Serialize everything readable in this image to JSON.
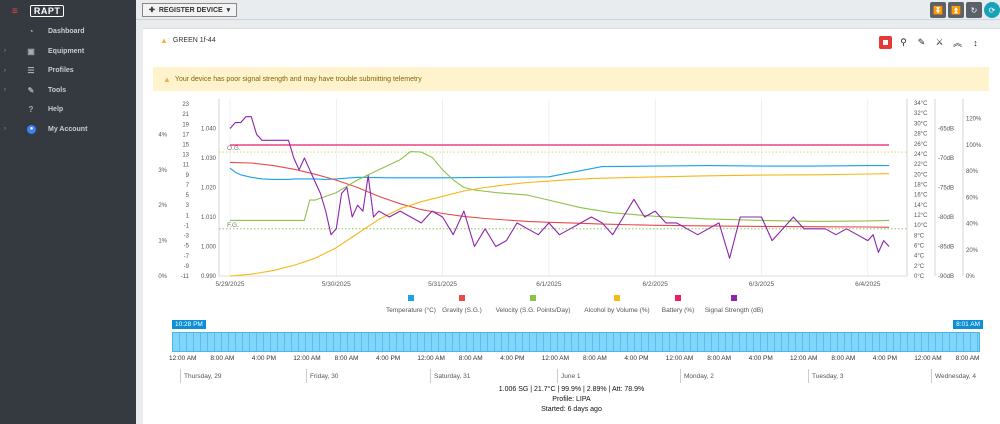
{
  "sidebar": {
    "logo": "RAPT",
    "items": [
      {
        "label": "Dashboard",
        "icon": "dashboard-icon",
        "glyph": "◔",
        "caret": false
      },
      {
        "label": "Equipment",
        "icon": "toolbox-icon",
        "glyph": "▣",
        "caret": true
      },
      {
        "label": "Profiles",
        "icon": "list-icon",
        "glyph": "☰",
        "caret": true
      },
      {
        "label": "Tools",
        "icon": "wrench-icon",
        "glyph": "✎",
        "caret": true
      },
      {
        "label": "Help",
        "icon": "help-icon",
        "glyph": "?",
        "caret": false
      },
      {
        "label": "My Account",
        "icon": "account-icon",
        "glyph": "●",
        "caret": true
      }
    ]
  },
  "topbar": {
    "register_label": "REGISTER DEVICE"
  },
  "device": {
    "name": "GREEN 1f-44"
  },
  "alert": {
    "text": "Your device has poor signal strength and may have trouble submitting telemetry"
  },
  "colors": {
    "temperature": "#1aa3e8",
    "gravity": "#e84a4a",
    "velocity": "#8bc34a",
    "abv": "#f6b717",
    "battery": "#e91e63",
    "signal": "#8e24aa"
  },
  "chart_data": {
    "type": "line",
    "x_ticks": [
      "5/29/2025",
      "5/30/2025",
      "5/31/2025",
      "6/1/2025",
      "6/2/2025",
      "6/3/2025",
      "6/4/2025"
    ],
    "axes": {
      "abv_pct": {
        "ticks": [
          "0%",
          "1%",
          "2%",
          "3%",
          "4%"
        ],
        "range": [
          0,
          5
        ]
      },
      "velocity": {
        "ticks": [
          "-11",
          "-9",
          "-7",
          "-5",
          "-3",
          "-1",
          "1",
          "3",
          "5",
          "7",
          "9",
          "11",
          "13",
          "15",
          "17",
          "19",
          "21",
          "23"
        ],
        "range": [
          -11,
          24
        ]
      },
      "gravity": {
        "ticks": [
          "0.990",
          "1.000",
          "1.010",
          "1.020",
          "1.030",
          "1.040"
        ],
        "range": [
          0.99,
          1.05
        ]
      },
      "temperature": {
        "ticks": [
          "0°C",
          "2°C",
          "4°C",
          "6°C",
          "8°C",
          "10°C",
          "12°C",
          "14°C",
          "16°C",
          "18°C",
          "20°C",
          "22°C",
          "24°C",
          "26°C",
          "28°C",
          "30°C",
          "32°C",
          "34°C"
        ],
        "range": [
          0,
          34.8
        ]
      },
      "signal": {
        "ticks": [
          "-90dB",
          "-85dB",
          "-80dB",
          "-75dB",
          "-70dB",
          "-65dB"
        ],
        "range": [
          -90,
          -60
        ]
      },
      "battery": {
        "ticks": [
          "0%",
          "20%",
          "40%",
          "60%",
          "80%",
          "100%",
          "120%"
        ],
        "range": [
          0,
          135
        ]
      }
    },
    "reference_lines": [
      {
        "label": "O.G.",
        "value": 1.032
      },
      {
        "label": "F.G.",
        "value": 1.006
      }
    ],
    "series": [
      {
        "name": "Temperature (°C)",
        "key": "temperature",
        "axis": "temperature",
        "x": [
          0,
          0.05,
          0.1,
          0.2,
          0.3,
          0.4,
          0.5,
          0.55,
          0.6,
          0.7,
          0.8,
          0.9,
          1.0,
          1.2,
          1.5,
          2.0,
          2.5,
          3.0,
          3.5,
          4.0,
          4.5,
          5.0,
          5.5,
          6.0,
          6.2
        ],
        "y": [
          21.2,
          20.4,
          19.9,
          19.4,
          19.1,
          19.0,
          19.0,
          19.0,
          19.1,
          19.1,
          19.1,
          19.0,
          19.1,
          19.4,
          19.3,
          19.3,
          19.4,
          19.5,
          21.5,
          21.6,
          21.7,
          21.6,
          21.6,
          21.7,
          21.7
        ]
      },
      {
        "name": "Gravity (S.G.)",
        "key": "gravity",
        "axis": "gravity",
        "x": [
          0,
          0.2,
          0.4,
          0.6,
          0.8,
          1.0,
          1.2,
          1.4,
          1.6,
          1.8,
          2.0,
          2.2,
          2.4,
          2.6,
          2.8,
          3.0,
          3.2,
          3.5,
          4.0,
          4.5,
          5.0,
          5.5,
          6.0,
          6.2
        ],
        "y": [
          1.0285,
          1.0283,
          1.0275,
          1.0262,
          1.0245,
          1.0225,
          1.02,
          1.017,
          1.0145,
          1.0125,
          1.0112,
          1.0102,
          1.0095,
          1.009,
          1.0085,
          1.0082,
          1.008,
          1.0076,
          1.0072,
          1.007,
          1.0068,
          1.0067,
          1.0066,
          1.0065
        ]
      },
      {
        "name": "Velocity (S.G. Points/Day)",
        "key": "velocity",
        "axis": "velocity",
        "x": [
          0,
          0.4,
          0.7,
          0.75,
          0.8,
          1.0,
          1.2,
          1.4,
          1.6,
          1.7,
          1.8,
          1.9,
          2.0,
          2.1,
          2.2,
          2.3,
          2.5,
          2.8,
          3.0,
          3.3,
          3.6,
          4.0,
          4.5,
          5.0,
          5.5,
          6.0,
          6.2
        ],
        "y": [
          0,
          0,
          0,
          4,
          4,
          5.5,
          8,
          10,
          12,
          13.6,
          13.5,
          12.5,
          10,
          8,
          6.5,
          6.0,
          5.5,
          5.0,
          4.0,
          2.5,
          1.5,
          0.8,
          0.3,
          0,
          -0.2,
          -0.1,
          0
        ]
      },
      {
        "name": "Alcohol by Volume (%)",
        "key": "abv",
        "axis": "abv_pct",
        "x": [
          0,
          0.2,
          0.4,
          0.6,
          0.8,
          1.0,
          1.2,
          1.4,
          1.6,
          1.8,
          2.0,
          2.2,
          2.4,
          2.6,
          2.8,
          3.0,
          3.2,
          3.4,
          3.6,
          4.0,
          4.5,
          5.0,
          5.5,
          6.0,
          6.2
        ],
        "y": [
          0,
          0.05,
          0.15,
          0.3,
          0.5,
          0.8,
          1.2,
          1.6,
          1.9,
          2.1,
          2.25,
          2.4,
          2.5,
          2.58,
          2.64,
          2.68,
          2.72,
          2.75,
          2.77,
          2.8,
          2.83,
          2.85,
          2.86,
          2.88,
          2.89
        ]
      },
      {
        "name": "Battery (%)",
        "key": "battery",
        "axis": "battery",
        "x": [
          0,
          6.2
        ],
        "y": [
          99.9,
          99.9
        ]
      },
      {
        "name": "Signal Strength (dB)",
        "key": "signal",
        "axis": "signal",
        "x": [
          0,
          0.05,
          0.1,
          0.15,
          0.2,
          0.25,
          0.3,
          0.5,
          0.55,
          0.6,
          0.65,
          0.7,
          0.75,
          0.8,
          0.85,
          0.9,
          0.95,
          1.0,
          1.05,
          1.1,
          1.15,
          1.2,
          1.25,
          1.3,
          1.35,
          1.4,
          1.5,
          1.6,
          1.7,
          1.8,
          1.9,
          2.0,
          2.1,
          2.2,
          2.3,
          2.4,
          2.5,
          2.6,
          2.7,
          2.8,
          2.9,
          3.0,
          3.1,
          3.2,
          3.3,
          3.4,
          3.5,
          3.6,
          3.7,
          3.8,
          3.9,
          4.0,
          4.1,
          4.2,
          4.3,
          4.4,
          4.5,
          4.6,
          4.7,
          4.8,
          4.9,
          5.0,
          5.1,
          5.2,
          5.3,
          5.4,
          5.5,
          5.6,
          5.7,
          5.8,
          5.9,
          6.0,
          6.05,
          6.1,
          6.15,
          6.2
        ],
        "y": [
          -65,
          -64,
          -64,
          -63,
          -63,
          -66,
          -67,
          -67,
          -67,
          -70,
          -72,
          -70,
          -72,
          -74,
          -76,
          -79,
          -83,
          -82,
          -76,
          -75,
          -80,
          -78,
          -79,
          -73,
          -80,
          -79,
          -80,
          -79,
          -80,
          -81,
          -79,
          -80,
          -83,
          -79,
          -85,
          -82,
          -85,
          -84,
          -81,
          -82,
          -83,
          -81,
          -83,
          -82,
          -81,
          -80,
          -81,
          -83,
          -80,
          -77,
          -80,
          -79,
          -81,
          -81,
          -82,
          -83,
          -82,
          -81,
          -87,
          -80,
          -80,
          -80,
          -84,
          -82,
          -80,
          -82,
          -82,
          -82,
          -83,
          -82,
          -83,
          -84,
          -83,
          -86,
          -84,
          -85
        ]
      }
    ]
  },
  "timeline": {
    "start_badge": "10:28 PM",
    "end_badge": "8:01 AM",
    "hours": [
      "12:00 AM",
      "8:00 AM",
      "4:00 PM",
      "12:00 AM",
      "8:00 AM",
      "4:00 PM",
      "12:00 AM",
      "8:00 AM",
      "4:00 PM",
      "12:00 AM",
      "8:00 AM",
      "4:00 PM",
      "12:00 AM",
      "8:00 AM",
      "4:00 PM",
      "12:00 AM",
      "8:00 AM",
      "4:00 PM",
      "12:00 AM",
      "8:00 AM"
    ],
    "days": [
      "Thursday, 29",
      "Friday, 30",
      "Saturday, 31",
      "June 1",
      "Monday, 2",
      "Tuesday, 3",
      "Wednesday, 4"
    ]
  },
  "stats": {
    "line1": "1.006 SG  |  21.7°C  |  99.9%  |  2.89%  |  Att: 78.9%",
    "profile": "Profile: LIPA",
    "started": "Started: 6 days ago"
  }
}
